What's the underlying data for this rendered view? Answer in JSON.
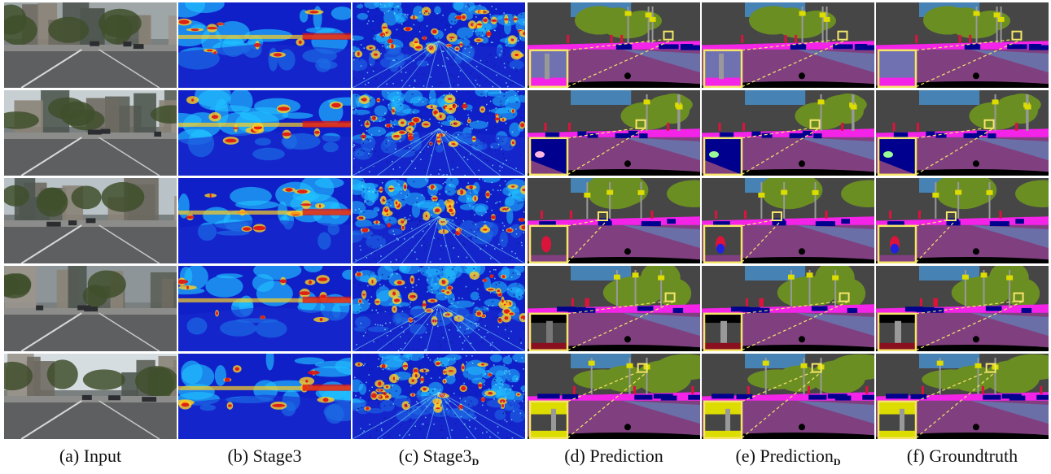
{
  "figure": {
    "columns": [
      {
        "key": "input",
        "prefix": "(a) Input",
        "sub": ""
      },
      {
        "key": "stage3",
        "prefix": "(b) Stage3",
        "sub": ""
      },
      {
        "key": "stage3d",
        "prefix": "(c) Stage3",
        "sub": "D"
      },
      {
        "key": "prediction",
        "prefix": "(d) Prediction",
        "sub": ""
      },
      {
        "key": "predictiond",
        "prefix": "(e) Prediction",
        "sub": "D"
      },
      {
        "key": "groundtruth",
        "prefix": "(f) Groundtruth",
        "sub": ""
      }
    ],
    "rows": 5,
    "colors": {
      "road": "#804080",
      "sidewalk": "#f423e8",
      "building": "#464646",
      "vegetation": "#6b8e23",
      "sky": "#4682b4",
      "car": "#00008e",
      "person": "#dc143c",
      "pole": "#999999",
      "sign": "#dcdc00",
      "terrain": "#98fb98",
      "ego": "#000000",
      "highlight": "#f5e66a",
      "heat_low": "#1020c8",
      "heat_mid": "#20c0ff",
      "heat_high": "#e01010"
    }
  }
}
